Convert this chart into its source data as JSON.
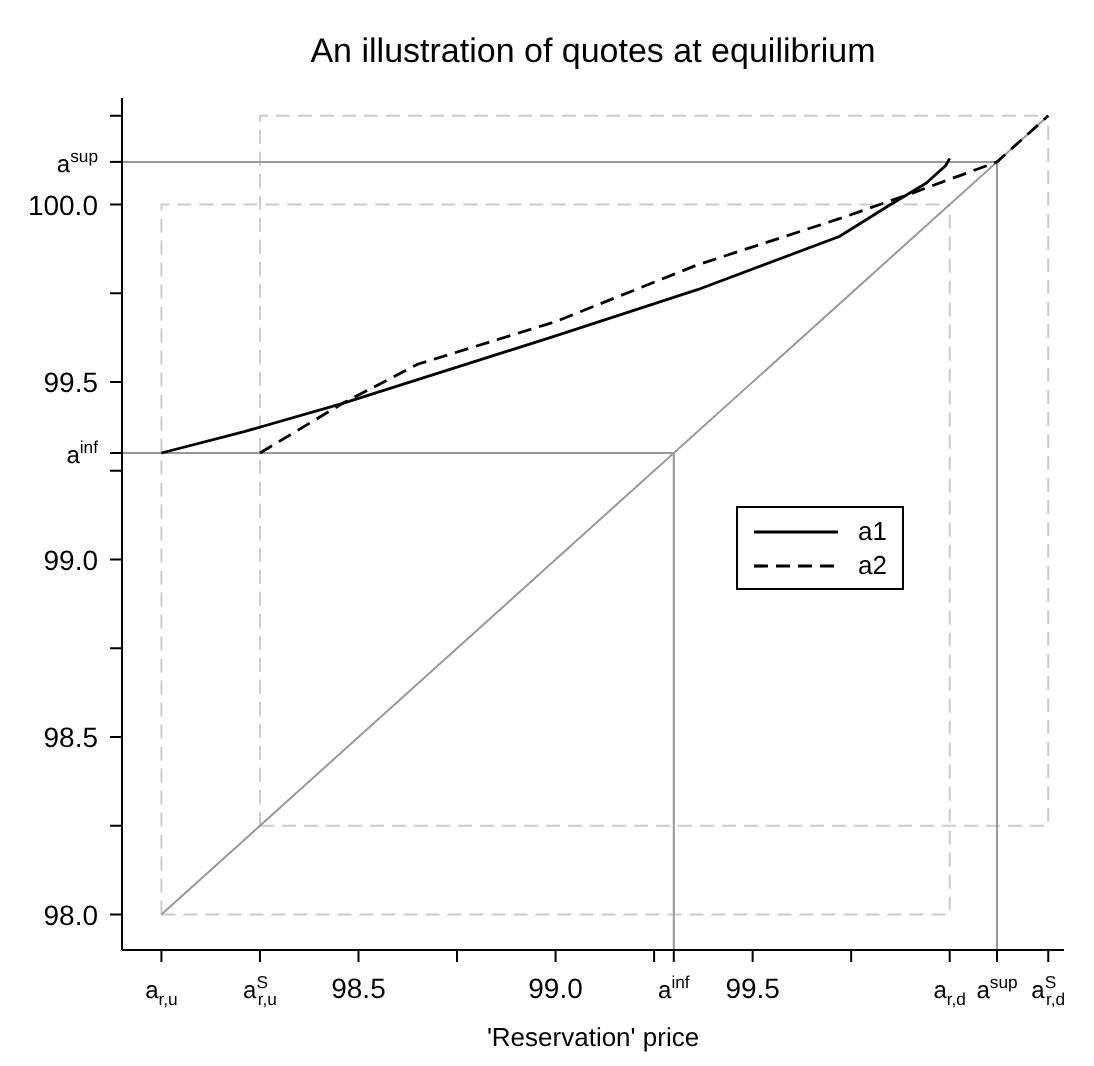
{
  "chart_data": {
    "type": "line",
    "title": "An illustration of quotes at equilibrium",
    "xlabel": "'Reservation' price",
    "xlim": [
      97.9,
      100.29
    ],
    "ylim": [
      97.9,
      100.3
    ],
    "xticks": [
      {
        "value": 98.0,
        "label": "a$_{r,u}$"
      },
      {
        "value": 98.25,
        "label": "a$^{S}$$_{r,u}$"
      },
      98.5,
      {
        "value": 98.75,
        "label": null
      },
      {
        "value": 99,
        "label": "99.0"
      },
      {
        "value": 99.25,
        "label": null
      },
      {
        "value": 99.3,
        "label": "a$^{inf}$"
      },
      99.5,
      {
        "value": 99.75,
        "label": null
      },
      {
        "value": 100.0,
        "label": "a$_{r,d}$"
      },
      {
        "value": 100.12,
        "label": "a$^{sup}$"
      },
      {
        "value": 100.25,
        "label": "a$^{S}$$_{r,d}$"
      }
    ],
    "yticks": [
      {
        "value": 98,
        "label": "98.0"
      },
      {
        "value": 98.25,
        "label": null
      },
      98.5,
      {
        "value": 98.75,
        "label": null
      },
      {
        "value": 99,
        "label": "99.0"
      },
      {
        "value": 99.25,
        "label": null
      },
      {
        "value": 99.3,
        "label": "a$^{inf}$"
      },
      99.5,
      {
        "value": 99.75,
        "label": null
      },
      {
        "value": 100,
        "label": "100.0"
      },
      {
        "value": 100.12,
        "label": "a$^{sup}$"
      },
      {
        "value": 100.25,
        "label": null
      }
    ],
    "grid": false,
    "legend": "right",
    "marker": "none",
    "series": [
      {
        "type": "line",
        "color": "#cccccc",
        "line_style": "dashed",
        "x": [
          98.0,
          98.0,
          100.0
        ],
        "values": [
          98.0,
          100.0,
          100.0
        ]
      },
      {
        "type": "line",
        "color": "#cccccc",
        "line_style": "dashed",
        "x": [
          98.0,
          100.0,
          100.0
        ],
        "values": [
          98.0,
          98.0,
          100.0
        ]
      },
      {
        "type": "line",
        "color": "#cccccc",
        "line_style": "dashed",
        "x": [
          98.25,
          98.25,
          100.25
        ],
        "values": [
          98.25,
          100.25,
          100.25
        ]
      },
      {
        "type": "line",
        "color": "#cccccc",
        "line_style": "dashed",
        "x": [
          98.25,
          100.25,
          100.25
        ],
        "values": [
          98.25,
          98.25,
          100.25
        ]
      },
      {
        "type": "line",
        "color": "#999999",
        "line_style": "solid",
        "x": [
          98.0,
          100.25
        ],
        "values": [
          98.0,
          100.25
        ]
      },
      {
        "type": "line",
        "color": "#999999",
        "line_style": "solid",
        "x": [
          97.9,
          99.3,
          99.3
        ],
        "values": [
          99.3,
          99.3,
          97.9
        ]
      },
      {
        "type": "line",
        "color": "#999999",
        "line_style": "solid",
        "x": [
          97.9,
          100.12,
          100.12
        ],
        "values": [
          100.12,
          100.12,
          97.9
        ]
      },
      {
        "type": "line",
        "name": "a1",
        "color": "#000000",
        "line_style": "solid",
        "x": [
          98.0,
          98.21,
          98.46,
          98.83,
          99.0,
          99.36,
          99.72,
          99.85,
          99.94,
          99.99,
          100.0
        ],
        "values": [
          99.3,
          99.36,
          99.44,
          99.57,
          99.63,
          99.76,
          99.91,
          100.0,
          100.06,
          100.11,
          100.13
        ]
      },
      {
        "type": "line",
        "name": "a2",
        "color": "#000000",
        "line_style": "dashed",
        "x": [
          98.25,
          98.46,
          98.65,
          99.0,
          99.36,
          99.72,
          99.9,
          100.12,
          100.25
        ],
        "values": [
          99.3,
          99.44,
          99.55,
          99.67,
          99.83,
          99.96,
          100.03,
          100.12,
          100.25
        ]
      }
    ]
  }
}
